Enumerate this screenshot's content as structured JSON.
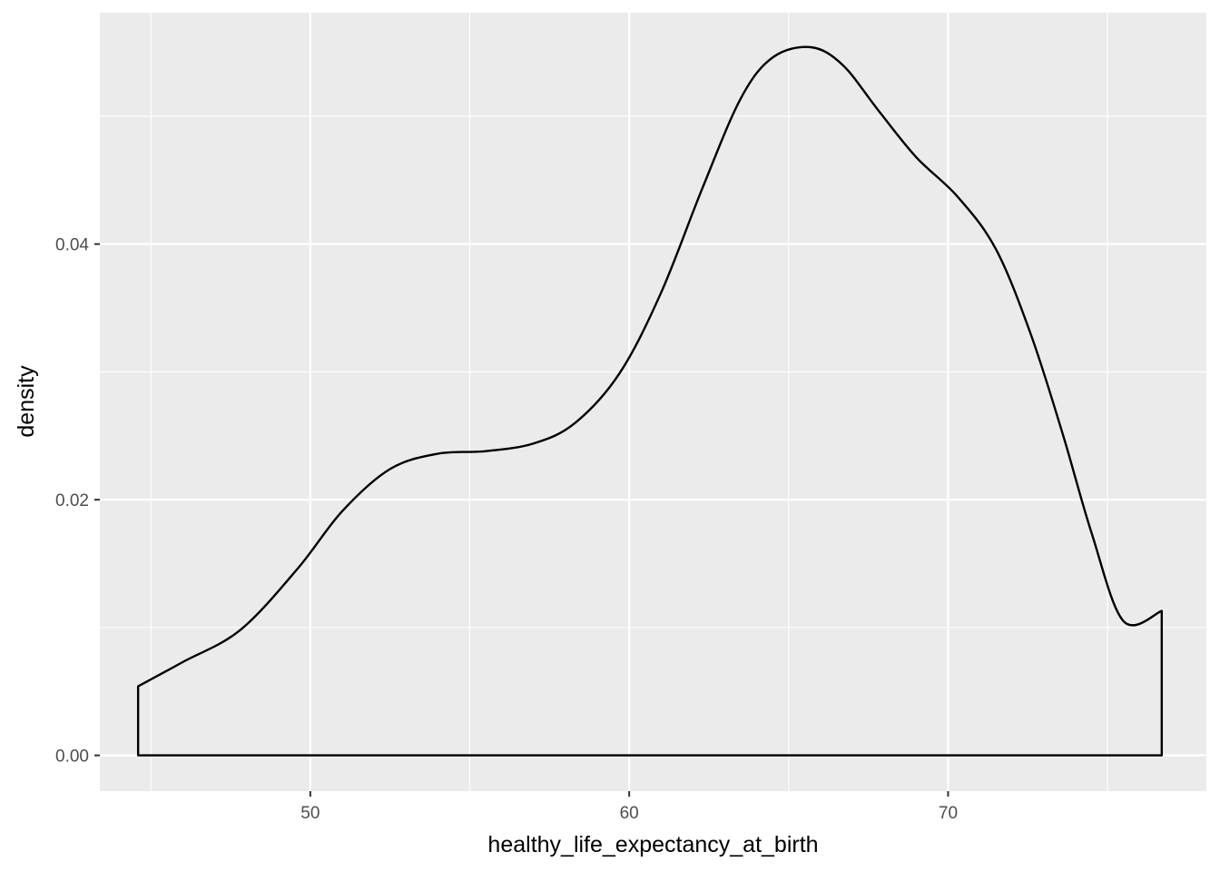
{
  "chart_data": {
    "type": "line",
    "geom": "density",
    "title": "",
    "xlabel": "healthy_life_expectancy_at_birth",
    "ylabel": "density",
    "xlim": [
      43.4,
      78.1
    ],
    "ylim": [
      -0.0028,
      0.0581
    ],
    "x_ticks": [
      50,
      60,
      70
    ],
    "x_tick_labels": [
      "50",
      "60",
      "70"
    ],
    "x_minor_ticks": [
      45,
      55,
      65,
      75
    ],
    "y_ticks": [
      0.0,
      0.02,
      0.04
    ],
    "y_tick_labels": [
      "0.00",
      "0.02",
      "0.04"
    ],
    "y_minor_ticks": [
      0.01,
      0.03,
      0.05
    ],
    "grid": true,
    "legend": "none",
    "colors": {
      "panel": "#ebebeb",
      "grid": "#ffffff",
      "line": "#000000"
    },
    "series": [
      {
        "x": [
          44.6,
          46.0,
          47.8,
          49.6,
          51.0,
          52.5,
          54.0,
          55.5,
          57.0,
          58.3,
          59.7,
          61.0,
          62.3,
          63.5,
          64.5,
          65.7,
          66.7,
          67.8,
          69.0,
          70.3,
          71.5,
          72.6,
          73.6,
          74.5,
          75.5,
          76.7
        ],
        "y": [
          0.0054,
          0.0073,
          0.0098,
          0.0146,
          0.0191,
          0.0224,
          0.0236,
          0.0238,
          0.0244,
          0.026,
          0.0299,
          0.0362,
          0.0444,
          0.0514,
          0.0546,
          0.0554,
          0.054,
          0.0505,
          0.0468,
          0.0437,
          0.0396,
          0.0329,
          0.0251,
          0.0174,
          0.0105,
          0.0113
        ]
      }
    ]
  }
}
